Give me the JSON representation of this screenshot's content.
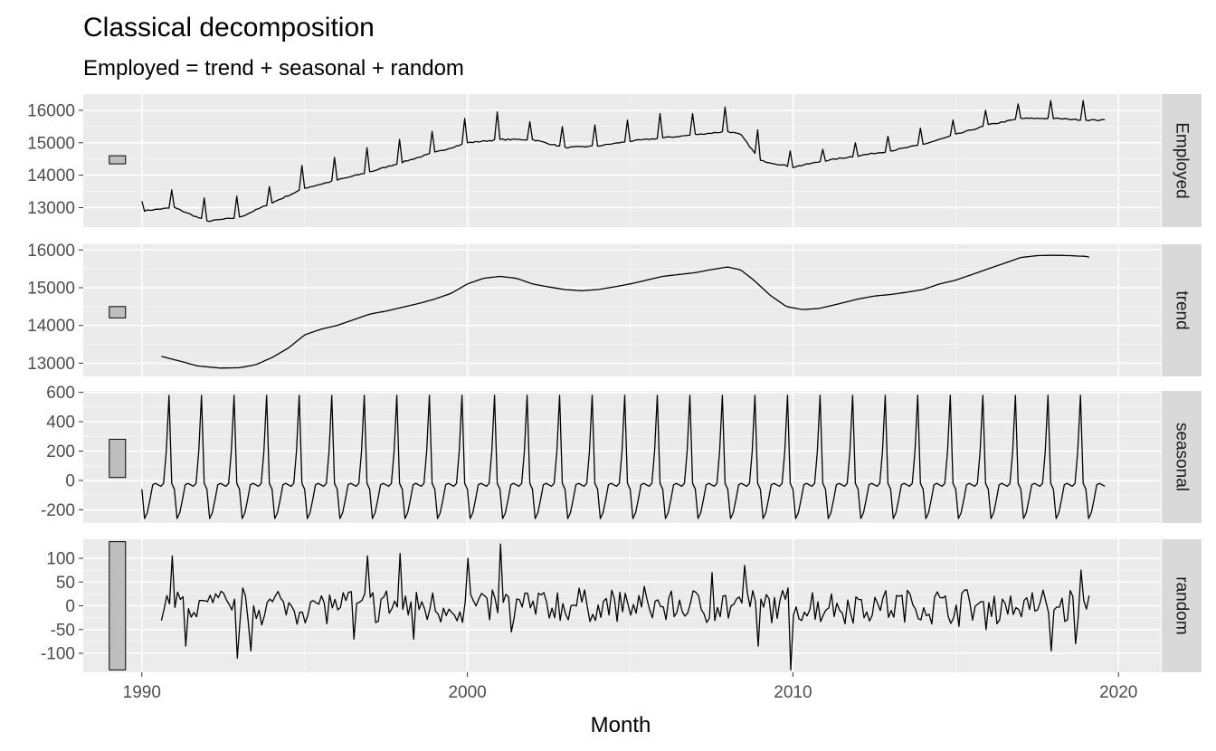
{
  "chart_data": {
    "type": "line",
    "title": "Classical decomposition",
    "subtitle": "Employed = trend + seasonal + random",
    "xlabel": "Month",
    "x_range": [
      1988.2,
      2021.3
    ],
    "x_ticks": [
      {
        "value": 1990,
        "label": "1990"
      },
      {
        "value": 2000,
        "label": "2000"
      },
      {
        "value": 2010,
        "label": "2010"
      },
      {
        "value": 2020,
        "label": "2020"
      }
    ],
    "grid": true,
    "scale_bar_x": [
      1989.0,
      1989.5
    ],
    "panels": [
      {
        "name": "Employed",
        "ylim": [
          12400,
          16500
        ],
        "yticks": [
          13000,
          14000,
          15000,
          16000
        ],
        "scale_bar": [
          14350,
          14600
        ],
        "seasonal_amplitude": 0,
        "knots": [
          [
            1990.0,
            12900
          ],
          [
            1991.0,
            13000
          ],
          [
            1992.0,
            12580
          ],
          [
            1993.0,
            12700
          ],
          [
            1994.0,
            13150
          ],
          [
            1995.0,
            13600
          ],
          [
            1996.0,
            13850
          ],
          [
            1997.0,
            14100
          ],
          [
            1998.0,
            14400
          ],
          [
            1999.0,
            14700
          ],
          [
            2000.0,
            15000
          ],
          [
            2001.0,
            15100
          ],
          [
            2002.0,
            15100
          ],
          [
            2003.0,
            14850
          ],
          [
            2004.0,
            14900
          ],
          [
            2005.0,
            15050
          ],
          [
            2006.0,
            15150
          ],
          [
            2007.0,
            15250
          ],
          [
            2008.0,
            15350
          ],
          [
            2008.4,
            15250
          ],
          [
            2009.0,
            14450
          ],
          [
            2010.0,
            14250
          ],
          [
            2011.0,
            14450
          ],
          [
            2012.0,
            14600
          ],
          [
            2013.0,
            14750
          ],
          [
            2014.0,
            14950
          ],
          [
            2015.0,
            15250
          ],
          [
            2016.0,
            15550
          ],
          [
            2017.0,
            15750
          ],
          [
            2018.0,
            15750
          ],
          [
            2019.0,
            15700
          ],
          [
            2019.6,
            15700
          ]
        ],
        "spikes": [
          [
            1990.0,
            13200
          ],
          [
            1990.9,
            13550
          ],
          [
            1991.9,
            13300
          ],
          [
            1992.9,
            13350
          ],
          [
            1993.9,
            13650
          ],
          [
            1994.9,
            14300
          ],
          [
            1995.9,
            14550
          ],
          [
            1996.9,
            14850
          ],
          [
            1997.9,
            15100
          ],
          [
            1998.9,
            15350
          ],
          [
            1999.9,
            15750
          ],
          [
            2000.9,
            15950
          ],
          [
            2001.9,
            15650
          ],
          [
            2002.9,
            15500
          ],
          [
            2003.9,
            15550
          ],
          [
            2004.9,
            15700
          ],
          [
            2005.9,
            15900
          ],
          [
            2006.9,
            15900
          ],
          [
            2007.9,
            16100
          ],
          [
            2008.9,
            15400
          ],
          [
            2009.9,
            14750
          ],
          [
            2010.9,
            14800
          ],
          [
            2011.9,
            15000
          ],
          [
            2012.9,
            15200
          ],
          [
            2013.9,
            15450
          ],
          [
            2014.9,
            15700
          ],
          [
            2015.9,
            16000
          ],
          [
            2016.9,
            16200
          ],
          [
            2017.9,
            16300
          ],
          [
            2018.9,
            16300
          ]
        ],
        "noise": 40
      },
      {
        "name": "trend",
        "ylim": [
          12650,
          16150
        ],
        "yticks": [
          13000,
          14000,
          15000,
          16000
        ],
        "scale_bar": [
          14200,
          14500
        ],
        "seasonal_amplitude": 0,
        "knots": [
          [
            1990.6,
            13180
          ],
          [
            1991.2,
            13050
          ],
          [
            1991.7,
            12930
          ],
          [
            1992.4,
            12870
          ],
          [
            1993.0,
            12880
          ],
          [
            1993.5,
            12960
          ],
          [
            1994.0,
            13150
          ],
          [
            1994.5,
            13400
          ],
          [
            1995.0,
            13750
          ],
          [
            1995.5,
            13900
          ],
          [
            1996.0,
            14000
          ],
          [
            1996.5,
            14150
          ],
          [
            1997.0,
            14300
          ],
          [
            1997.5,
            14380
          ],
          [
            1998.0,
            14480
          ],
          [
            1998.5,
            14580
          ],
          [
            1999.0,
            14700
          ],
          [
            1999.5,
            14850
          ],
          [
            2000.0,
            15100
          ],
          [
            2000.5,
            15250
          ],
          [
            2001.0,
            15300
          ],
          [
            2001.5,
            15250
          ],
          [
            2002.0,
            15100
          ],
          [
            2002.5,
            15020
          ],
          [
            2003.0,
            14950
          ],
          [
            2003.5,
            14920
          ],
          [
            2004.0,
            14950
          ],
          [
            2004.5,
            15020
          ],
          [
            2005.0,
            15100
          ],
          [
            2005.5,
            15200
          ],
          [
            2006.0,
            15300
          ],
          [
            2006.5,
            15350
          ],
          [
            2007.0,
            15400
          ],
          [
            2007.5,
            15480
          ],
          [
            2008.0,
            15550
          ],
          [
            2008.4,
            15470
          ],
          [
            2008.8,
            15200
          ],
          [
            2009.3,
            14800
          ],
          [
            2009.8,
            14500
          ],
          [
            2010.3,
            14420
          ],
          [
            2010.8,
            14450
          ],
          [
            2011.3,
            14550
          ],
          [
            2012.0,
            14700
          ],
          [
            2012.5,
            14780
          ],
          [
            2013.0,
            14820
          ],
          [
            2013.5,
            14880
          ],
          [
            2014.0,
            14950
          ],
          [
            2014.5,
            15100
          ],
          [
            2015.0,
            15200
          ],
          [
            2015.5,
            15350
          ],
          [
            2016.0,
            15500
          ],
          [
            2016.5,
            15650
          ],
          [
            2017.0,
            15800
          ],
          [
            2017.5,
            15850
          ],
          [
            2018.0,
            15860
          ],
          [
            2018.5,
            15850
          ],
          [
            2019.0,
            15830
          ],
          [
            2019.1,
            15810
          ]
        ],
        "spikes": [],
        "noise": 0
      },
      {
        "name": "seasonal",
        "ylim": [
          -290,
          610
        ],
        "yticks": [
          -200,
          0,
          200,
          400,
          600
        ],
        "scale_bar": [
          20,
          280
        ],
        "seasonal_pattern": [
          -60,
          -260,
          -220,
          -130,
          -30,
          -20,
          -30,
          -40,
          -20,
          200,
          580,
          -20
        ],
        "x_start": 1990.0,
        "x_end": 2019.6
      },
      {
        "name": "random",
        "ylim": [
          -140,
          140
        ],
        "yticks": [
          -100,
          -50,
          0,
          50,
          100
        ],
        "scale_bar": [
          -135,
          135
        ],
        "x_start": 1990.6,
        "x_end": 2019.1,
        "extremes": [
          [
            1990.9,
            105
          ],
          [
            1991.3,
            -85
          ],
          [
            1992.9,
            -110
          ],
          [
            1993.3,
            -95
          ],
          [
            1996.5,
            -70
          ],
          [
            1996.9,
            105
          ],
          [
            1997.9,
            110
          ],
          [
            1998.3,
            -70
          ],
          [
            1999.8,
            -35
          ],
          [
            2000.0,
            100
          ],
          [
            2001.0,
            130
          ],
          [
            2001.3,
            -55
          ],
          [
            2007.5,
            70
          ],
          [
            2008.5,
            85
          ],
          [
            2008.9,
            -85
          ],
          [
            2009.9,
            -135
          ],
          [
            2015.9,
            -50
          ],
          [
            2017.9,
            -95
          ],
          [
            2018.7,
            -80
          ],
          [
            2018.8,
            75
          ]
        ],
        "amplitude": 30
      }
    ]
  }
}
